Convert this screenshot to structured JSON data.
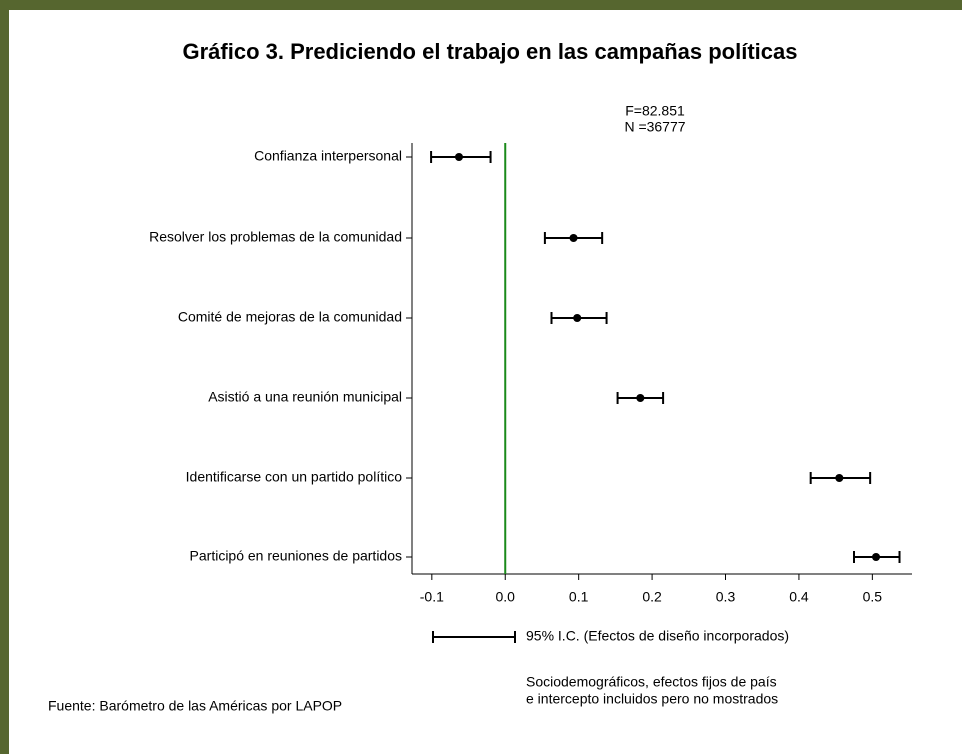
{
  "chart_data": {
    "type": "coefplot",
    "title": "Gráfico 3. Prediciendo el trabajo en las campañas políticas",
    "annotation": [
      "F=82.851",
      "N =36777"
    ],
    "categories": [
      "Confianza interpersonal",
      "Resolver los problemas de la comunidad",
      "Comité de mejoras de la comunidad",
      "Asistió a una reunión municipal",
      "Identificarse con un partido político",
      "Participó en reuniones de partidos"
    ],
    "values": [
      -0.063,
      0.093,
      0.098,
      0.184,
      0.455,
      0.505
    ],
    "ci_low": [
      -0.101,
      0.054,
      0.063,
      0.153,
      0.416,
      0.475
    ],
    "ci_high": [
      -0.02,
      0.132,
      0.138,
      0.215,
      0.497,
      0.537
    ],
    "color": "#000000",
    "refline": 0,
    "refline_color": "#1a8a1a",
    "xlim": [
      -0.127,
      0.554
    ],
    "xticks": [
      {
        "value": -0.1,
        "label": "-0.1"
      },
      {
        "value": 0,
        "label": "0.0"
      },
      0.1,
      0.2,
      0.3,
      0.4,
      0.5
    ],
    "legend": "95% I.C. (Efectos de diseño incorporados)",
    "note": [
      "Sociodemográficos, efectos fijos de país",
      "e intercepto incluidos pero no mostrados"
    ],
    "source": "Fuente: Barómetro de las Américas por LAPOP"
  }
}
